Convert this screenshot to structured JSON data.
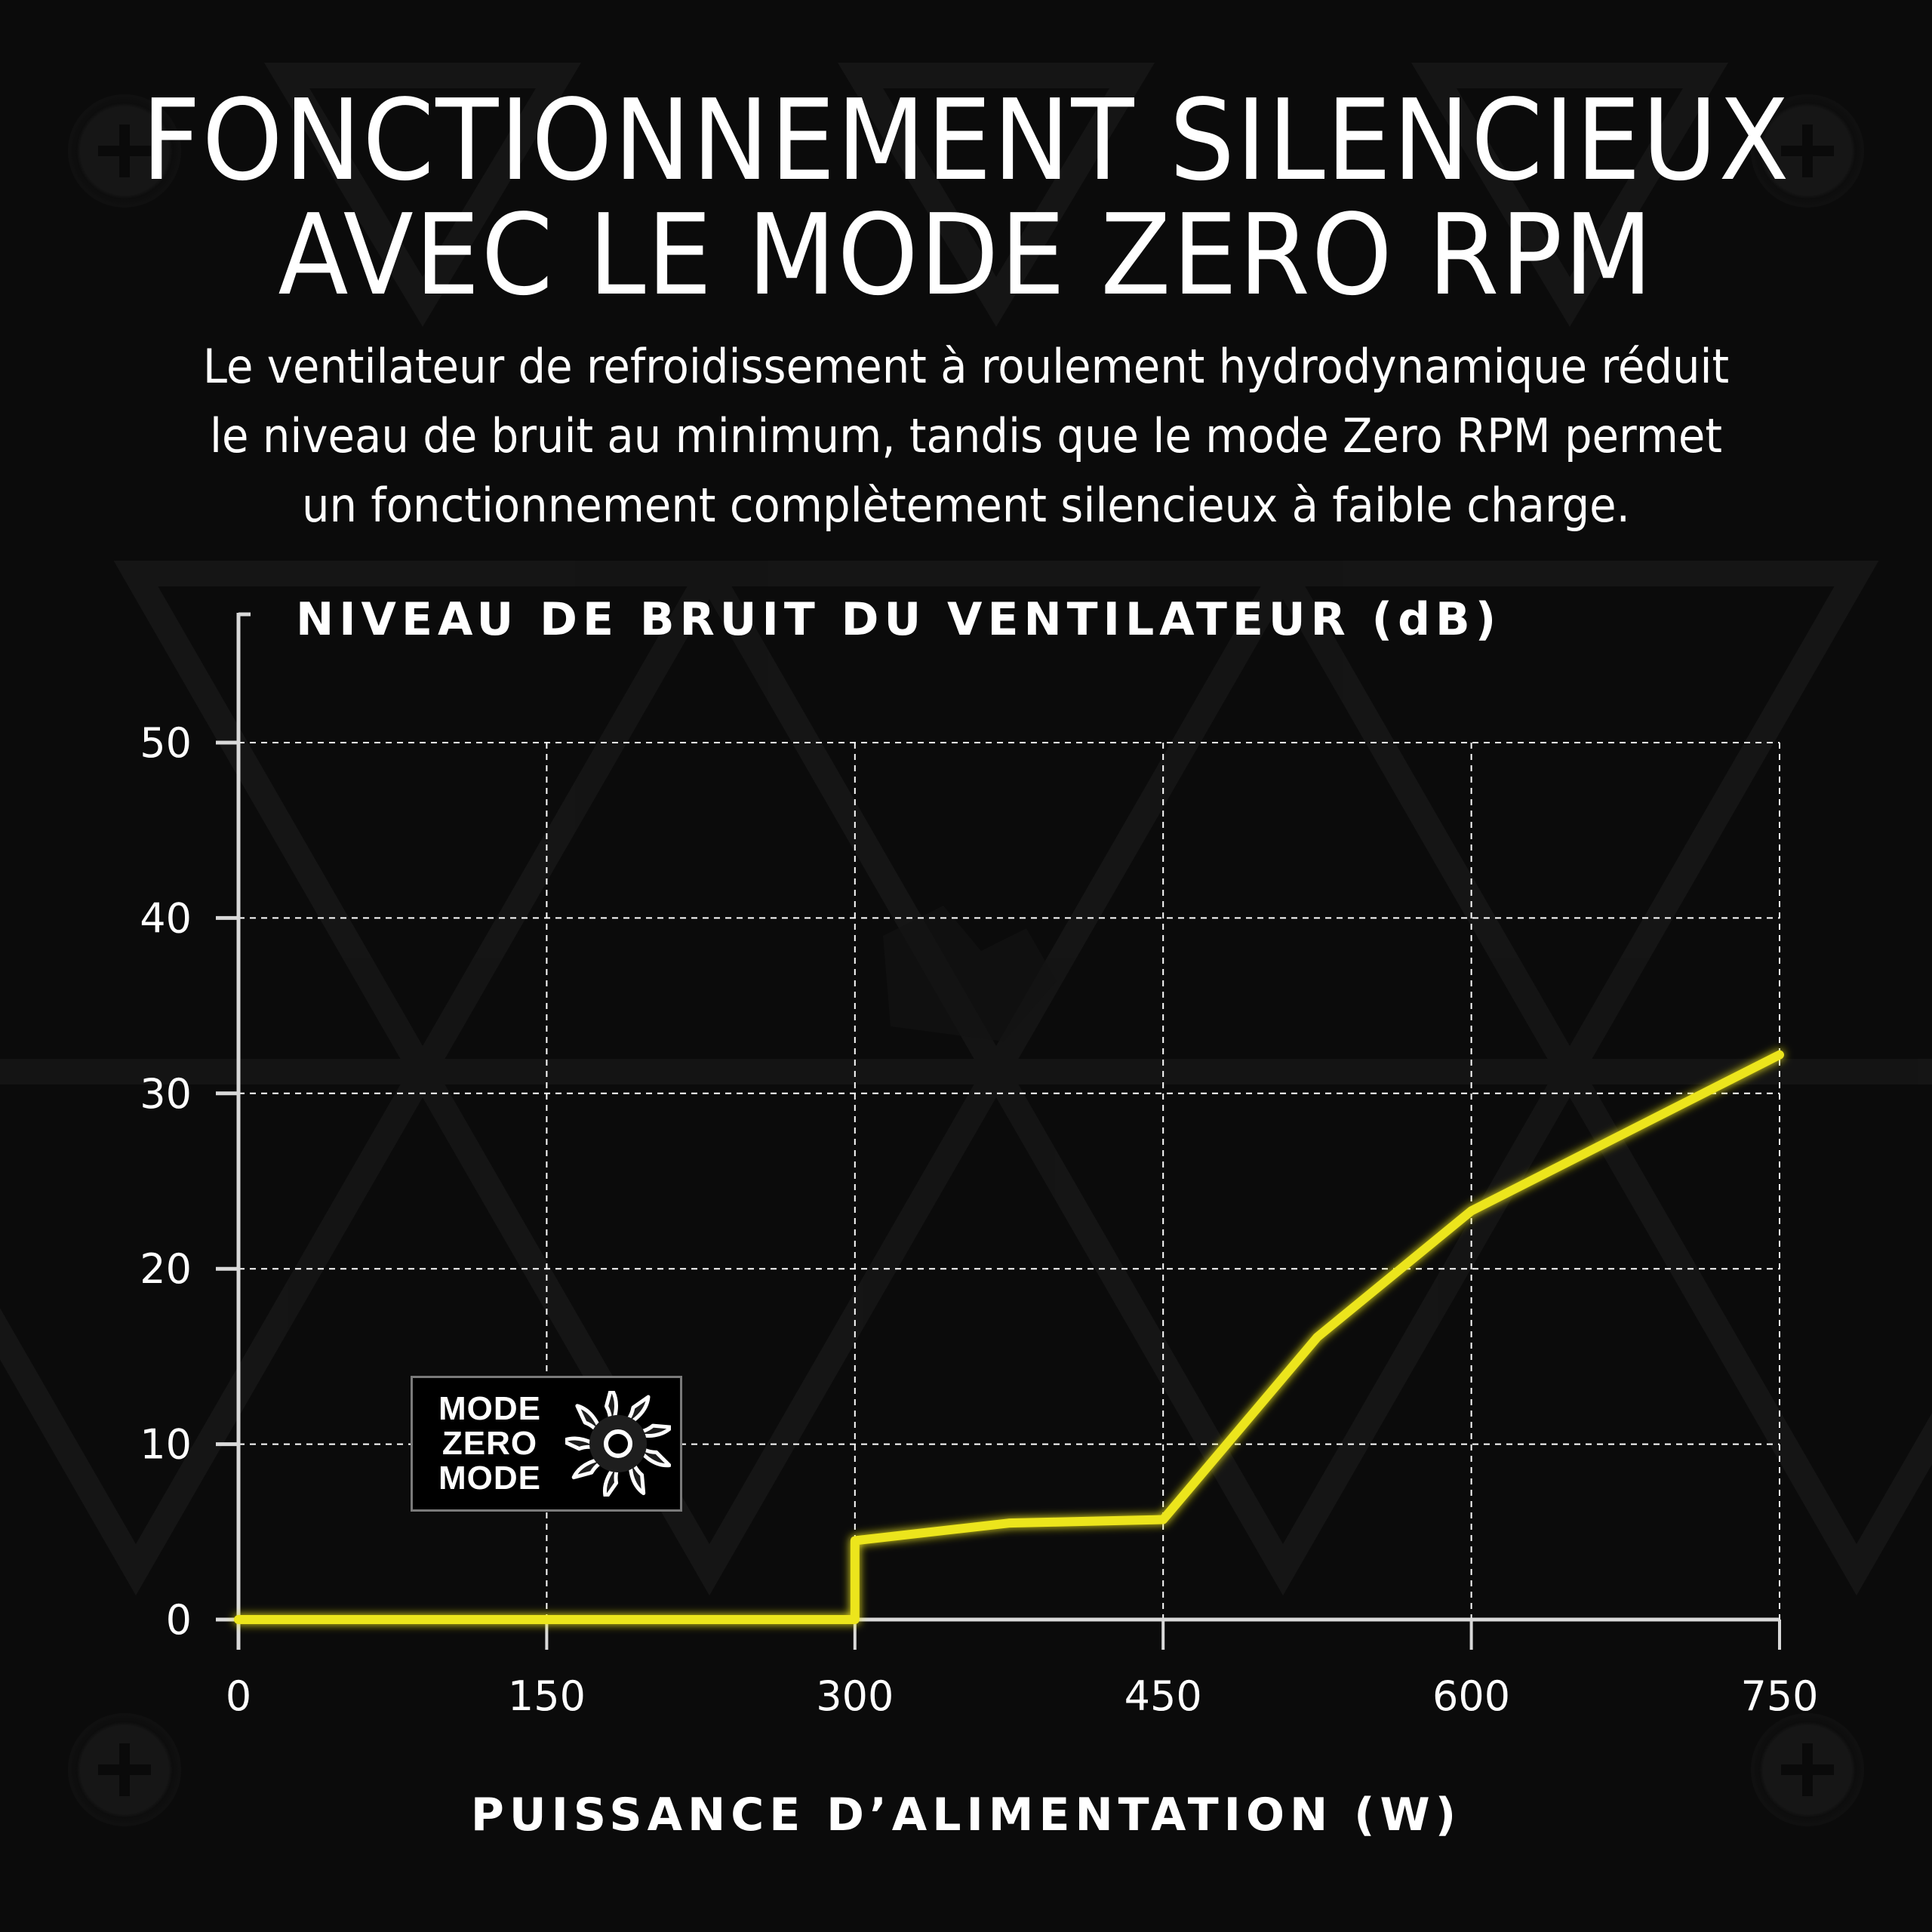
{
  "header": {
    "title_lines": [
      "FONCTIONNEMENT SILENCIEUX",
      "AVEC LE MODE ZERO RPM"
    ],
    "description_lines": [
      "Le ventilateur de refroidissement à roulement hydrodynamique réduit",
      "le niveau de bruit au minimum, tandis que le mode Zero RPM permet",
      "un fonctionnement complètement silencieux à faible charge."
    ]
  },
  "badge": {
    "lines": [
      "MODE",
      "ZERO",
      "MODE"
    ],
    "icon": "fan-icon"
  },
  "colors": {
    "background": "#0b0b0b",
    "line": "#ece51c",
    "axis": "#d9d9d9",
    "grid": "#ffffff",
    "text": "#ffffff"
  },
  "chart_data": {
    "type": "line",
    "title": "NIVEAU DE BRUIT DU VENTILATEUR (dB)",
    "xlabel": "PUISSANCE D’ALIMENTATION (W)",
    "ylabel": "NIVEAU DE BRUIT DU VENTILATEUR (dB)",
    "x_ticks": [
      0,
      150,
      300,
      450,
      600,
      750
    ],
    "y_ticks": [
      0,
      10,
      20,
      30,
      40,
      50
    ],
    "xlim": [
      0,
      750
    ],
    "ylim": [
      0,
      50
    ],
    "grid": true,
    "legend": null,
    "annotations": [
      "MODE ZERO MODE"
    ],
    "series": [
      {
        "name": "Niveau de bruit du ventilateur",
        "x": [
          0,
          300,
          300,
          375,
          450,
          525,
          600,
          750
        ],
        "y": [
          0,
          0,
          4.5,
          5.5,
          5.7,
          16.1,
          23.3,
          32.2
        ]
      }
    ]
  }
}
